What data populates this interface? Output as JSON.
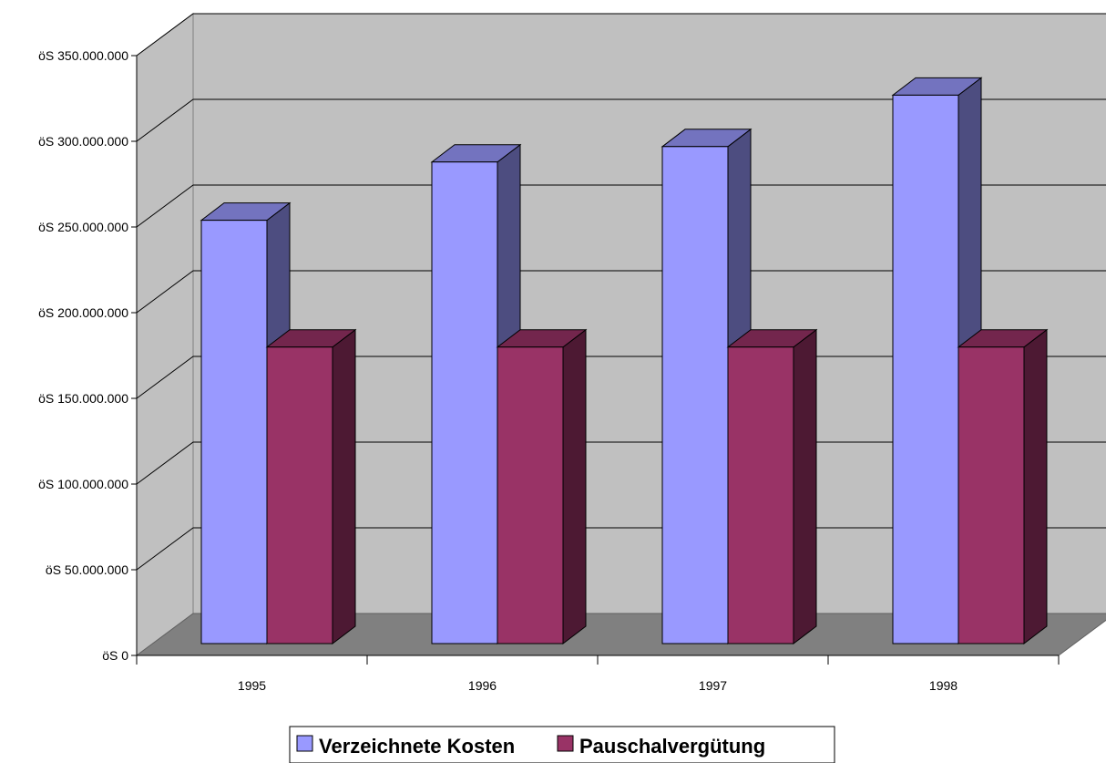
{
  "chart_data": {
    "type": "bar",
    "title": "",
    "xlabel": "",
    "ylabel": "",
    "categories": [
      "1995",
      "1996",
      "1997",
      "1998"
    ],
    "series": [
      {
        "name": "Verzeichnete Kosten",
        "values": [
          247000000,
          281000000,
          290000000,
          320000000
        ]
      },
      {
        "name": "Pauschalvergütung",
        "values": [
          173000000,
          173000000,
          173000000,
          173000000
        ]
      }
    ],
    "ylim": [
      0,
      350000000
    ],
    "y_ticks": [
      "öS 0",
      "öS 50.000.000",
      "öS 100.000.000",
      "öS 150.000.000",
      "öS 200.000.000",
      "öS 250.000.000",
      "öS 300.000.000",
      "öS 350.000.000"
    ],
    "grid": true,
    "style": "3d",
    "legend_position": "bottom",
    "colors": {
      "series": [
        "#9999ff",
        "#993366"
      ],
      "series_side": [
        "#4d4d80",
        "#4d1933"
      ],
      "series_top": [
        "#7373bf",
        "#73264d"
      ],
      "wall": "#c0c0c0",
      "floor": "#808080"
    }
  }
}
